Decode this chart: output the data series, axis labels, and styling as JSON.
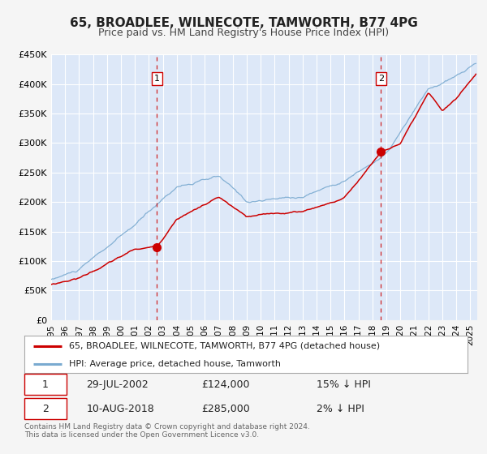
{
  "title": "65, BROADLEE, WILNECOTE, TAMWORTH, B77 4PG",
  "subtitle": "Price paid vs. HM Land Registry's House Price Index (HPI)",
  "ylim": [
    0,
    450000
  ],
  "yticks": [
    0,
    50000,
    100000,
    150000,
    200000,
    250000,
    300000,
    350000,
    400000,
    450000
  ],
  "ytick_labels": [
    "£0",
    "£50K",
    "£100K",
    "£150K",
    "£200K",
    "£250K",
    "£300K",
    "£350K",
    "£400K",
    "£450K"
  ],
  "xlim_start": 1995.0,
  "xlim_end": 2025.5,
  "xticks": [
    1995,
    1996,
    1997,
    1998,
    1999,
    2000,
    2001,
    2002,
    2003,
    2004,
    2005,
    2006,
    2007,
    2008,
    2009,
    2010,
    2011,
    2012,
    2013,
    2014,
    2015,
    2016,
    2017,
    2018,
    2019,
    2020,
    2021,
    2022,
    2023,
    2024,
    2025
  ],
  "fig_bg_color": "#f5f5f5",
  "plot_bg_color": "#dde8f8",
  "grid_color": "#ffffff",
  "red_line_color": "#cc0000",
  "blue_line_color": "#7aaad0",
  "marker1_x": 2002.57,
  "marker1_y": 124000,
  "marker2_x": 2018.61,
  "marker2_y": 285000,
  "vline1_x": 2002.57,
  "vline2_x": 2018.61,
  "legend_label1": "65, BROADLEE, WILNECOTE, TAMWORTH, B77 4PG (detached house)",
  "legend_label2": "HPI: Average price, detached house, Tamworth",
  "table_row1": [
    "1",
    "29-JUL-2002",
    "£124,000",
    "15% ↓ HPI"
  ],
  "table_row2": [
    "2",
    "10-AUG-2018",
    "£285,000",
    "2% ↓ HPI"
  ],
  "footnote1": "Contains HM Land Registry data © Crown copyright and database right 2024.",
  "footnote2": "This data is licensed under the Open Government Licence v3.0.",
  "title_fontsize": 11,
  "subtitle_fontsize": 9
}
